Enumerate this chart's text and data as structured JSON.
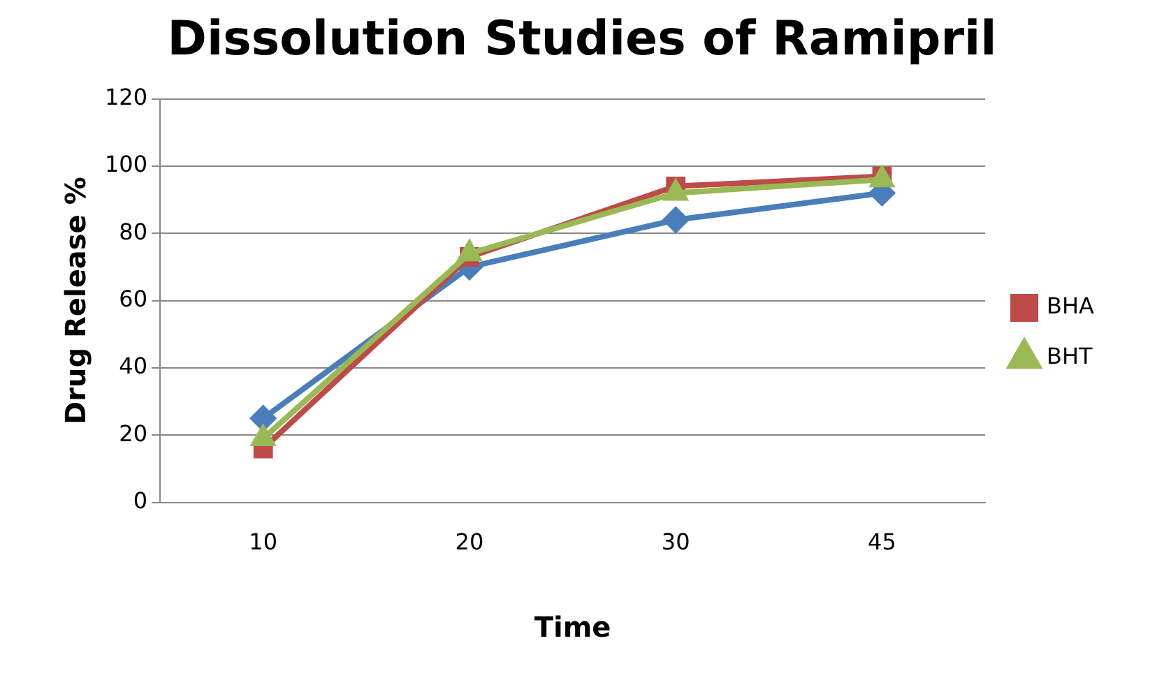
{
  "chart_data": {
    "type": "line",
    "title": "Dissolution Studies of Ramipril",
    "xlabel": "Time",
    "ylabel": "Drug Release %",
    "categories": [
      "10",
      "20",
      "30",
      "45"
    ],
    "series": [
      {
        "color": "#4a7ebb",
        "marker": "diamond",
        "values": [
          25,
          70,
          84,
          92
        ]
      },
      {
        "name": "BHA",
        "color": "#be4b48",
        "marker": "square",
        "values": [
          16,
          73,
          94,
          97
        ]
      },
      {
        "name": "BHT",
        "color": "#98b954",
        "marker": "triangle",
        "values": [
          19,
          74,
          92,
          96
        ]
      }
    ],
    "ylim": [
      0,
      120
    ],
    "yticks": [
      0,
      20,
      40,
      60,
      80,
      100,
      120
    ],
    "grid": "y",
    "legend": "right"
  }
}
